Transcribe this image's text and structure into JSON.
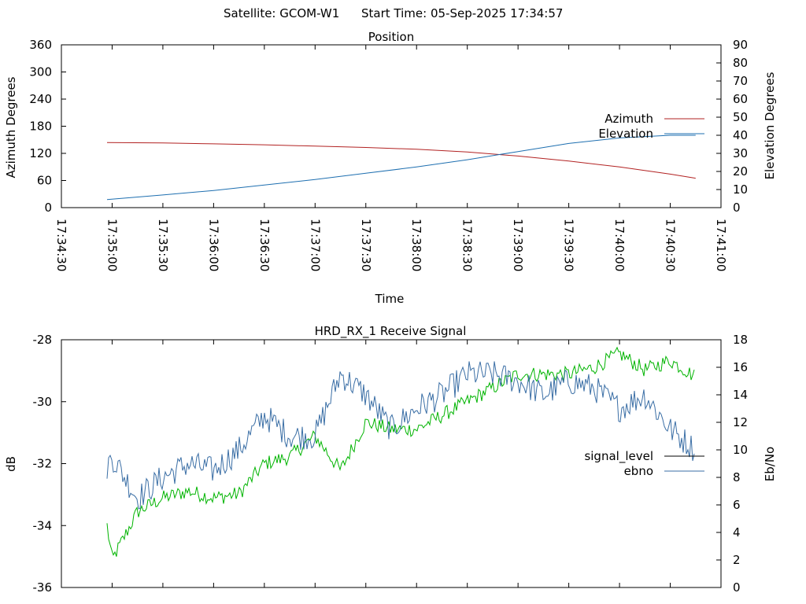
{
  "header": {
    "satellite": "Satellite: GCOM-W1",
    "start_time": "Start Time: 05-Sep-2025 17:34:57"
  },
  "colors": {
    "azimuth": "#b22222",
    "elevation": "#1e6fb0",
    "signal_level": "#00b400",
    "ebno": "#3a6ea5",
    "axis": "#000000"
  },
  "chart_data": [
    {
      "type": "line",
      "title": "Position",
      "xlabel": "Time",
      "ylabel": "Azimuth Degrees",
      "y2label": "Elevation Degrees",
      "x_ticks": [
        "17:34:30",
        "17:35:00",
        "17:35:30",
        "17:36:00",
        "17:36:30",
        "17:37:00",
        "17:37:30",
        "17:38:00",
        "17:38:30",
        "17:39:00",
        "17:39:30",
        "17:40:00",
        "17:40:30",
        "17:41:00"
      ],
      "xlim": [
        "17:34:30",
        "17:41:00"
      ],
      "y_ticks": [
        "0",
        "60",
        "120",
        "180",
        "240",
        "300",
        "360"
      ],
      "ylim": [
        0,
        360
      ],
      "y2_ticks": [
        "0",
        "10",
        "20",
        "30",
        "40",
        "50",
        "60",
        "70",
        "80",
        "90"
      ],
      "y2lim": [
        0,
        90
      ],
      "legend_position": "right",
      "series": [
        {
          "name": "Azimuth",
          "axis": "y",
          "x": [
            "17:34:57",
            "17:35:30",
            "17:36:00",
            "17:36:30",
            "17:37:00",
            "17:37:30",
            "17:38:00",
            "17:38:30",
            "17:39:00",
            "17:39:30",
            "17:40:00",
            "17:40:30",
            "17:40:45"
          ],
          "values": [
            144,
            143,
            141,
            139,
            136,
            133,
            129,
            123,
            114,
            103,
            90,
            74,
            65
          ]
        },
        {
          "name": "Elevation",
          "axis": "y2",
          "x": [
            "17:34:57",
            "17:35:30",
            "17:36:00",
            "17:36:30",
            "17:37:00",
            "17:37:30",
            "17:38:00",
            "17:38:30",
            "17:39:00",
            "17:39:30",
            "17:40:00",
            "17:40:30",
            "17:40:45"
          ],
          "values": [
            4.5,
            7,
            9.5,
            12.5,
            15.5,
            19,
            22.5,
            26.5,
            31,
            35.5,
            38.5,
            40,
            40
          ]
        }
      ]
    },
    {
      "type": "line",
      "title": "HRD_RX_1 Receive Signal",
      "xlabel": "",
      "ylabel": "dB",
      "y2label": "Eb/No",
      "xlim": [
        "17:34:30",
        "17:41:00"
      ],
      "y_ticks": [
        "-28",
        "-30",
        "-32",
        "-34",
        "-36"
      ],
      "ylim": [
        -36,
        -28
      ],
      "y2_ticks": [
        "0",
        "2",
        "4",
        "6",
        "8",
        "10",
        "12",
        "14",
        "16",
        "18"
      ],
      "y2lim": [
        0,
        18
      ],
      "legend_position": "right",
      "series": [
        {
          "name": "signal_level",
          "axis": "y2",
          "x": [
            "17:34:57",
            "17:35:00",
            "17:35:15",
            "17:35:30",
            "17:35:45",
            "17:36:00",
            "17:36:15",
            "17:36:30",
            "17:36:45",
            "17:37:00",
            "17:37:15",
            "17:37:30",
            "17:37:45",
            "17:38:00",
            "17:38:15",
            "17:38:30",
            "17:38:45",
            "17:39:00",
            "17:39:15",
            "17:39:30",
            "17:39:45",
            "17:40:00",
            "17:40:15",
            "17:40:30",
            "17:40:45"
          ],
          "values": [
            4.5,
            2.0,
            5.5,
            6.5,
            7.0,
            6.5,
            6.8,
            9.0,
            9.5,
            11.0,
            8.5,
            12.0,
            11.5,
            11.5,
            12.5,
            13.5,
            14.5,
            15.5,
            15.5,
            15.5,
            16.0,
            17.0,
            15.8,
            16.5,
            15.3
          ]
        },
        {
          "name": "ebno",
          "axis": "y2",
          "x": [
            "17:34:57",
            "17:35:00",
            "17:35:15",
            "17:35:30",
            "17:35:45",
            "17:36:00",
            "17:36:15",
            "17:36:30",
            "17:36:45",
            "17:37:00",
            "17:37:15",
            "17:37:30",
            "17:37:45",
            "17:38:00",
            "17:38:15",
            "17:38:30",
            "17:38:45",
            "17:39:00",
            "17:39:15",
            "17:39:30",
            "17:39:45",
            "17:40:00",
            "17:40:15",
            "17:40:30",
            "17:40:45"
          ],
          "values": [
            8.8,
            9.5,
            6.5,
            8.0,
            9.0,
            8.5,
            10.0,
            12.5,
            11.0,
            11.0,
            15.5,
            14.0,
            11.5,
            13.0,
            14.0,
            15.5,
            15.5,
            15.0,
            14.0,
            15.0,
            14.5,
            13.0,
            14.0,
            11.5,
            10.0
          ]
        }
      ]
    }
  ]
}
